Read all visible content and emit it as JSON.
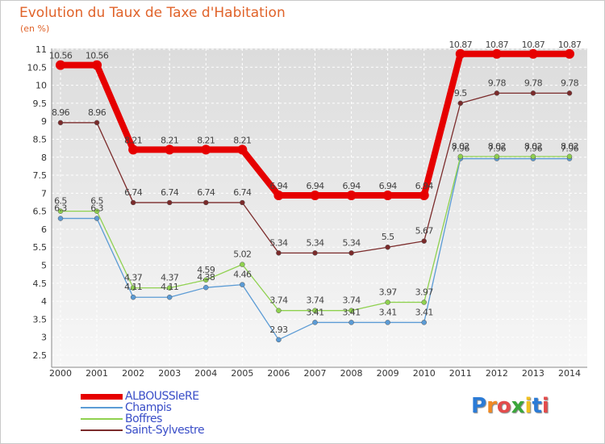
{
  "page": {
    "title": "Evolution du Taux de Taxe d'Habitation",
    "subtitle": "(en %)"
  },
  "chart_data": {
    "type": "line",
    "title": "Evolution du Taux de Taxe d'Habitation",
    "ylabel": "(en %)",
    "xlabel": "",
    "x": [
      "2000",
      "2001",
      "2002",
      "2003",
      "2004",
      "2005",
      "2006",
      "2007",
      "2008",
      "2009",
      "2010",
      "2011",
      "2012",
      "2013",
      "2014"
    ],
    "ylim": [
      2.5,
      11
    ],
    "yticks": [
      "2.5",
      "3",
      "3.5",
      "4",
      "4.5",
      "5",
      "5.5",
      "6",
      "6.5",
      "7",
      "7.5",
      "8",
      "8.5",
      "9",
      "9.5",
      "10",
      "10.5",
      "11"
    ],
    "grid": true,
    "legend_position": "bottom-left",
    "series": [
      {
        "name": "ALBOUSSIeRE",
        "color": "#e60000",
        "values": [
          10.56,
          10.56,
          8.21,
          8.21,
          8.21,
          8.21,
          6.94,
          6.94,
          6.94,
          6.94,
          6.94,
          10.87,
          10.87,
          10.87,
          10.87
        ],
        "labels": [
          "10.56",
          "10.56",
          "8.21",
          "8.21",
          "8.21",
          "8.21",
          "6.94",
          "6.94",
          "6.94",
          "6.94",
          "6.94",
          "10.87",
          "10.87",
          "10.87",
          "10.87"
        ]
      },
      {
        "name": "Champis",
        "color": "#5b9bd5",
        "values": [
          6.3,
          6.3,
          4.11,
          4.11,
          4.38,
          4.46,
          2.93,
          3.41,
          3.41,
          3.41,
          3.41,
          7.96,
          7.96,
          7.96,
          7.96
        ],
        "labels": [
          "6.3",
          "6.3",
          "4.11",
          "4.11",
          "4.38",
          "4.46",
          "2.93",
          "3.41",
          "3.41",
          "3.41",
          "3.41",
          "7.96",
          "7.96",
          "7.96",
          "7.96"
        ]
      },
      {
        "name": "Boffres",
        "color": "#8fd14f",
        "values": [
          6.5,
          6.5,
          4.37,
          4.37,
          4.59,
          5.02,
          3.74,
          3.74,
          3.74,
          3.97,
          3.97,
          8.02,
          8.02,
          8.02,
          8.02
        ],
        "labels": [
          "6.5",
          "6.5",
          "4.37",
          "4.37",
          "4.59",
          "5.02",
          "3.74",
          "3.74",
          "3.74",
          "3.97",
          "3.97",
          "8.02",
          "8.02",
          "8.02",
          "8.02"
        ]
      },
      {
        "name": "Saint-Sylvestre",
        "color": "#7b2b2b",
        "values": [
          8.96,
          8.96,
          6.74,
          6.74,
          6.74,
          6.74,
          5.34,
          5.34,
          5.34,
          5.5,
          5.67,
          9.5,
          9.78,
          9.78,
          9.78
        ],
        "labels": [
          "8.96",
          "8.96",
          "6.74",
          "6.74",
          "6.74",
          "6.74",
          "5.34",
          "5.34",
          "5.34",
          "5.5",
          "5.67",
          "9.5",
          "9.78",
          "9.78",
          "9.78"
        ]
      }
    ]
  },
  "legend": {
    "items": [
      {
        "label": "ALBOUSSIeRE",
        "color": "#e60000"
      },
      {
        "label": "Champis",
        "color": "#5b9bd5"
      },
      {
        "label": "Boffres",
        "color": "#8fd14f"
      },
      {
        "label": "Saint-Sylvestre",
        "color": "#7b2b2b"
      }
    ]
  },
  "logo": {
    "letters": [
      "P",
      "r",
      "o",
      "x",
      "i",
      "t",
      "i"
    ],
    "colors": [
      "#2b7bd6",
      "#f08a24",
      "#e34b4b",
      "#3aa63a",
      "#f0c020",
      "#2b7bd6",
      "#e34b4b"
    ]
  }
}
